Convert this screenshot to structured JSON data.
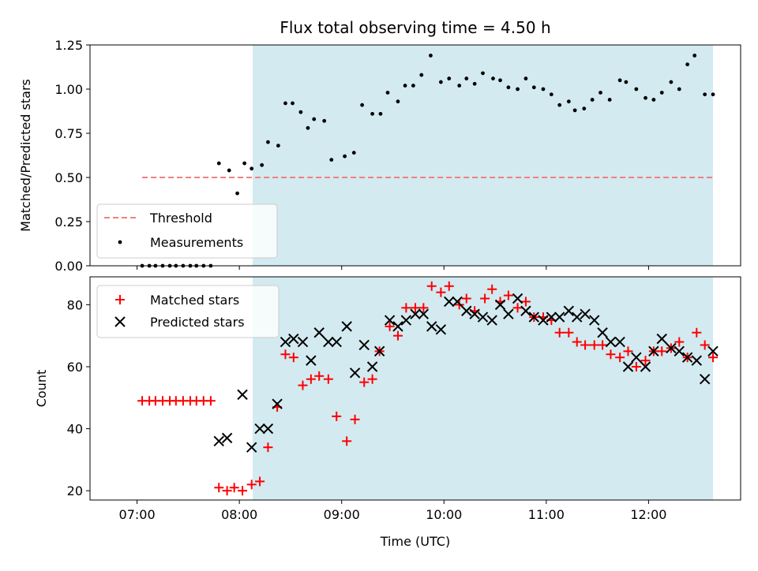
{
  "chart_data": [
    {
      "type": "scatter",
      "title": "Flux total observing time = 4.50 h",
      "xlabel": "",
      "ylabel": "Matched/Predicted stars",
      "xlim": [
        6.54,
        12.9
      ],
      "ylim": [
        0,
        1.25
      ],
      "yticks": [
        0,
        0.25,
        0.5,
        0.75,
        1.0,
        1.25
      ],
      "ytick_labels": [
        "0.00",
        "0.25",
        "0.50",
        "0.75",
        "1.00",
        "1.25"
      ],
      "shaded_region": [
        8.13,
        12.63
      ],
      "shaded_color": "#d3eaf1",
      "legend_position": "lower-left",
      "series": [
        {
          "name": "Threshold",
          "style": "dashed-line",
          "color": "#f08080",
          "x": [
            7.05,
            12.63
          ],
          "y": [
            0.5,
            0.5
          ]
        },
        {
          "name": "Measurements",
          "style": "dot",
          "color": "#000000",
          "x": [
            7.05,
            7.12,
            7.18,
            7.25,
            7.32,
            7.38,
            7.45,
            7.52,
            7.58,
            7.65,
            7.72,
            7.8,
            7.9,
            7.98,
            8.05,
            8.12,
            8.22,
            8.28,
            8.38,
            8.45,
            8.52,
            8.6,
            8.67,
            8.73,
            8.83,
            8.9,
            9.03,
            9.12,
            9.2,
            9.3,
            9.38,
            9.45,
            9.55,
            9.62,
            9.7,
            9.78,
            9.87,
            9.97,
            10.05,
            10.15,
            10.22,
            10.3,
            10.38,
            10.48,
            10.55,
            10.63,
            10.72,
            10.8,
            10.88,
            10.97,
            11.05,
            11.13,
            11.22,
            11.28,
            11.37,
            11.45,
            11.53,
            11.62,
            11.72,
            11.78,
            11.88,
            11.97,
            12.05,
            12.13,
            12.22,
            12.3,
            12.38,
            12.45,
            12.55,
            12.63
          ],
          "y": [
            0,
            0,
            0,
            0,
            0,
            0,
            0,
            0,
            0,
            0,
            0,
            0.58,
            0.54,
            0.41,
            0.58,
            0.55,
            0.57,
            0.7,
            0.68,
            0.92,
            0.92,
            0.87,
            0.78,
            0.83,
            0.82,
            0.6,
            0.62,
            0.64,
            0.91,
            0.86,
            0.86,
            0.98,
            0.93,
            1.02,
            1.02,
            1.08,
            1.19,
            1.04,
            1.06,
            1.02,
            1.06,
            1.03,
            1.09,
            1.06,
            1.05,
            1.01,
            1.0,
            1.06,
            1.01,
            1.0,
            0.97,
            0.91,
            0.93,
            0.88,
            0.89,
            0.94,
            0.98,
            0.94,
            1.05,
            1.04,
            1.0,
            0.95,
            0.94,
            0.98,
            1.04,
            1.0,
            1.14,
            1.19,
            0.97,
            0.97
          ]
        }
      ]
    },
    {
      "type": "scatter",
      "title": "",
      "xlabel": "Time (UTC)",
      "ylabel": "Count",
      "xlim": [
        6.54,
        12.9
      ],
      "ylim": [
        17,
        89
      ],
      "yticks": [
        20,
        40,
        60,
        80
      ],
      "ytick_labels": [
        "20",
        "40",
        "60",
        "80"
      ],
      "xticks": [
        7,
        8,
        9,
        10,
        11,
        12
      ],
      "xtick_labels": [
        "07:00",
        "08:00",
        "09:00",
        "10:00",
        "11:00",
        "12:00"
      ],
      "shaded_region": [
        8.13,
        12.63
      ],
      "shaded_color": "#d3eaf1",
      "legend_position": "upper-left",
      "series": [
        {
          "name": "Matched stars",
          "marker": "plus",
          "color": "#ff0000",
          "x": [
            7.05,
            7.12,
            7.18,
            7.25,
            7.32,
            7.38,
            7.45,
            7.52,
            7.58,
            7.65,
            7.72,
            7.8,
            7.88,
            7.95,
            8.03,
            8.12,
            8.2,
            8.28,
            8.37,
            8.45,
            8.53,
            8.62,
            8.7,
            8.78,
            8.87,
            8.95,
            9.05,
            9.13,
            9.22,
            9.3,
            9.37,
            9.47,
            9.55,
            9.63,
            9.72,
            9.8,
            9.88,
            9.97,
            10.05,
            10.15,
            10.22,
            10.3,
            10.4,
            10.47,
            10.55,
            10.63,
            10.72,
            10.8,
            10.88,
            10.97,
            11.05,
            11.13,
            11.22,
            11.3,
            11.38,
            11.47,
            11.55,
            11.63,
            11.72,
            11.8,
            11.88,
            11.97,
            12.05,
            12.13,
            12.22,
            12.3,
            12.38,
            12.47,
            12.55,
            12.63
          ],
          "y": [
            49,
            49,
            49,
            49,
            49,
            49,
            49,
            49,
            49,
            49,
            49,
            21,
            20,
            21,
            20,
            22,
            23,
            34,
            47,
            64,
            63,
            54,
            56,
            57,
            56,
            44,
            36,
            43,
            55,
            56,
            65,
            73,
            70,
            79,
            79,
            79,
            86,
            84,
            86,
            80,
            82,
            78,
            82,
            85,
            81,
            83,
            79,
            81,
            76,
            76,
            75,
            71,
            71,
            68,
            67,
            67,
            67,
            64,
            63,
            65,
            60,
            62,
            65,
            65,
            66,
            68,
            63,
            71,
            67,
            63
          ]
        },
        {
          "name": "Predicted stars",
          "marker": "x",
          "color": "#000000",
          "x": [
            7.8,
            7.88,
            8.03,
            8.12,
            8.2,
            8.28,
            8.37,
            8.45,
            8.53,
            8.62,
            8.7,
            8.78,
            8.87,
            8.95,
            9.05,
            9.13,
            9.22,
            9.3,
            9.37,
            9.47,
            9.55,
            9.63,
            9.72,
            9.8,
            9.88,
            9.97,
            10.05,
            10.13,
            10.22,
            10.3,
            10.38,
            10.47,
            10.55,
            10.63,
            10.72,
            10.8,
            10.88,
            10.97,
            11.05,
            11.13,
            11.22,
            11.3,
            11.38,
            11.47,
            11.55,
            11.63,
            11.72,
            11.8,
            11.88,
            11.97,
            12.05,
            12.13,
            12.22,
            12.3,
            12.38,
            12.47,
            12.55,
            12.63
          ],
          "y": [
            36,
            37,
            51,
            34,
            40,
            40,
            48,
            68,
            69,
            68,
            62,
            71,
            68,
            68,
            73,
            58,
            67,
            60,
            65,
            75,
            73,
            75,
            77,
            77,
            73,
            72,
            81,
            81,
            78,
            77,
            76,
            75,
            80,
            77,
            82,
            78,
            76,
            75,
            76,
            76,
            78,
            76,
            77,
            75,
            71,
            68,
            68,
            60,
            63,
            60,
            65,
            69,
            66,
            65,
            63,
            62,
            56,
            65
          ]
        }
      ]
    }
  ]
}
